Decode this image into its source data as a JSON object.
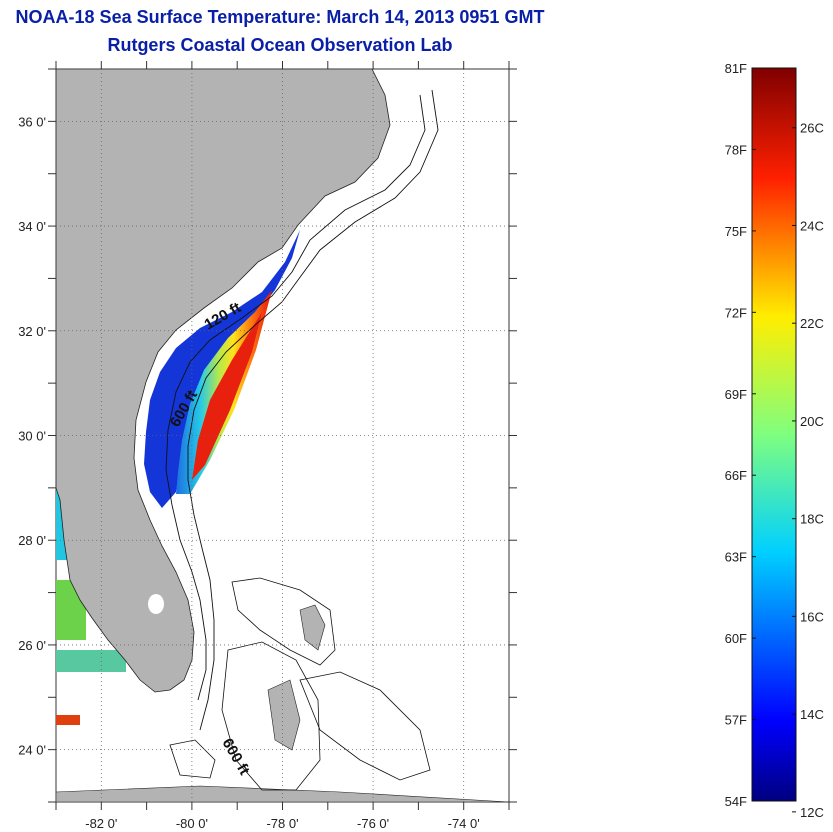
{
  "title": "NOAA-18 Sea Surface Temperature:  March 14, 2013 0951 GMT",
  "subtitle": "Rutgers Coastal Ocean Observation Lab",
  "map": {
    "lon_range": [
      -83,
      -73
    ],
    "lat_range": [
      23,
      37
    ],
    "lon_ticks": [
      "-82 0'",
      "-80 0'",
      "-78 0'",
      "-76 0'",
      "-74 0'"
    ],
    "lat_ticks": [
      "24 0'",
      "26 0'",
      "28 0'",
      "30 0'",
      "32 0'",
      "34 0'",
      "36 0'"
    ],
    "contour_labels": [
      "120 ft",
      "600 ft",
      "600 ft"
    ],
    "land_color": "#b3b3b3"
  },
  "colorbar": {
    "fahrenheit_labels": [
      "81F",
      "78F",
      "75F",
      "72F",
      "69F",
      "66F",
      "63F",
      "60F",
      "57F",
      "54F"
    ],
    "celsius_labels": [
      "26C",
      "24C",
      "22C",
      "20C",
      "18C",
      "16C",
      "14C",
      "12C"
    ],
    "range_f": [
      54,
      81
    ],
    "colormap": "jet"
  }
}
